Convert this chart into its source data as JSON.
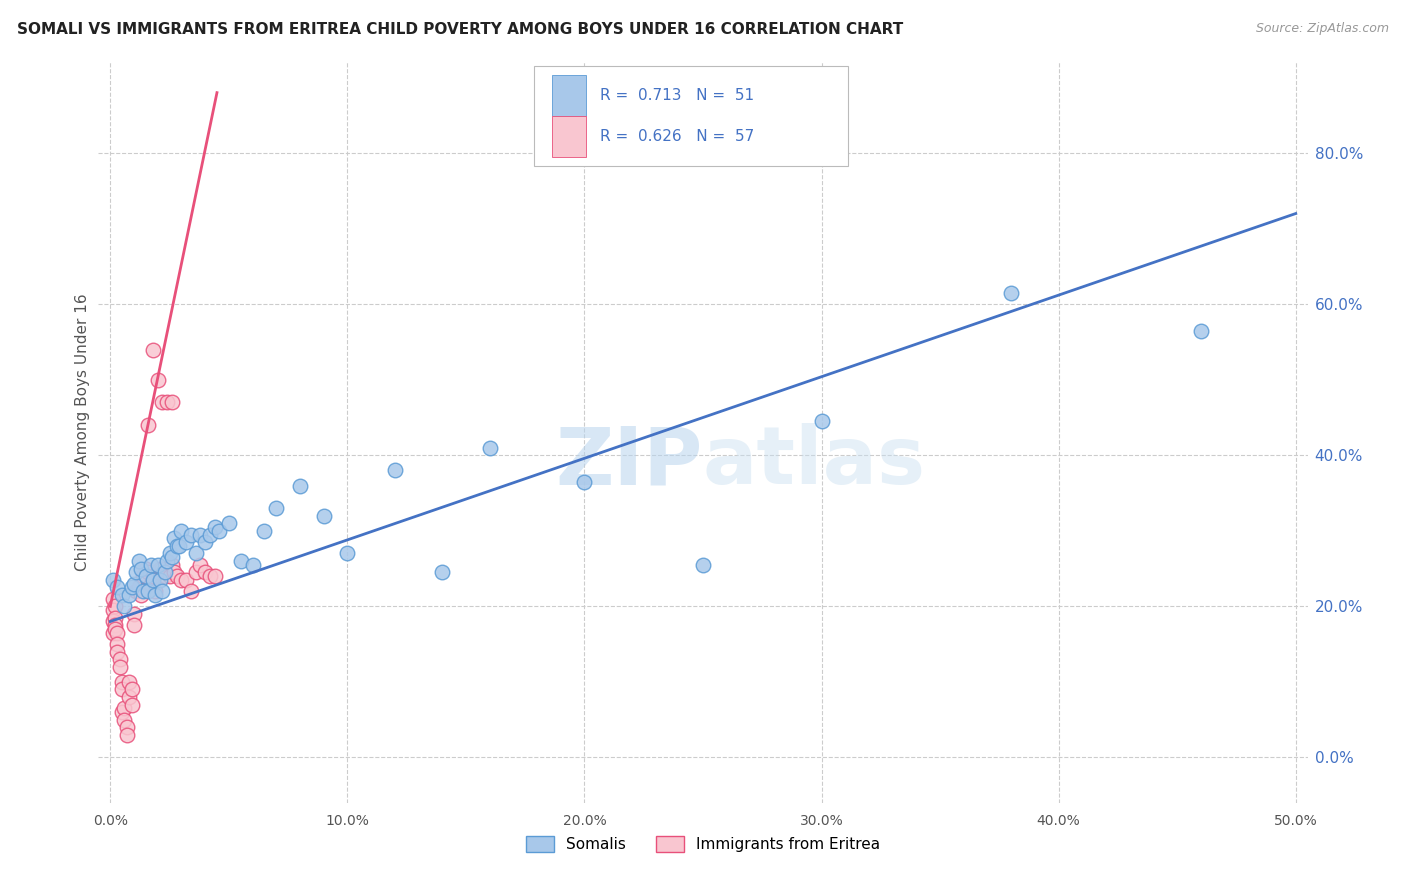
{
  "title": "SOMALI VS IMMIGRANTS FROM ERITREA CHILD POVERTY AMONG BOYS UNDER 16 CORRELATION CHART",
  "source": "Source: ZipAtlas.com",
  "ylabel": "Child Poverty Among Boys Under 16",
  "xlim": [
    -0.005,
    0.505
  ],
  "ylim": [
    -0.06,
    0.92
  ],
  "xtick_positions": [
    0.0,
    0.1,
    0.2,
    0.3,
    0.4,
    0.5
  ],
  "xtick_labels": [
    "0.0%",
    "10.0%",
    "20.0%",
    "30.0%",
    "40.0%",
    "50.0%"
  ],
  "ytick_positions": [
    0.0,
    0.2,
    0.4,
    0.6,
    0.8
  ],
  "ytick_labels": [
    "0.0%",
    "20.0%",
    "40.0%",
    "60.0%",
    "80.0%"
  ],
  "somali_fill": "#a8c8ea",
  "somali_edge": "#5b9bd5",
  "eritrea_fill": "#f9c6d0",
  "eritrea_edge": "#e8507a",
  "somali_line_color": "#4472c4",
  "eritrea_line_color": "#e8507a",
  "legend_text_color": "#4472c4",
  "legend_label_somali": "Somalis",
  "legend_label_eritrea": "Immigrants from Eritrea",
  "R_somali": "0.713",
  "N_somali": "51",
  "R_eritrea": "0.626",
  "N_eritrea": "57",
  "watermark_zip": "ZIP",
  "watermark_atlas": "atlas",
  "somali_line_x0": 0.0,
  "somali_line_x1": 0.5,
  "somali_line_y0": 0.18,
  "somali_line_y1": 0.72,
  "eritrea_line_x0": 0.0,
  "eritrea_line_x1": 0.045,
  "eritrea_line_y0": 0.2,
  "eritrea_line_y1": 0.88,
  "somali_x": [
    0.001,
    0.003,
    0.005,
    0.006,
    0.008,
    0.009,
    0.01,
    0.011,
    0.012,
    0.013,
    0.014,
    0.015,
    0.016,
    0.017,
    0.018,
    0.019,
    0.02,
    0.021,
    0.022,
    0.023,
    0.024,
    0.025,
    0.026,
    0.027,
    0.028,
    0.029,
    0.03,
    0.032,
    0.034,
    0.036,
    0.038,
    0.04,
    0.042,
    0.044,
    0.046,
    0.05,
    0.055,
    0.06,
    0.065,
    0.07,
    0.08,
    0.09,
    0.1,
    0.12,
    0.14,
    0.16,
    0.2,
    0.25,
    0.3,
    0.38,
    0.46
  ],
  "somali_y": [
    0.235,
    0.225,
    0.215,
    0.2,
    0.215,
    0.225,
    0.23,
    0.245,
    0.26,
    0.25,
    0.22,
    0.24,
    0.22,
    0.255,
    0.235,
    0.215,
    0.255,
    0.235,
    0.22,
    0.245,
    0.26,
    0.27,
    0.265,
    0.29,
    0.28,
    0.28,
    0.3,
    0.285,
    0.295,
    0.27,
    0.295,
    0.285,
    0.295,
    0.305,
    0.3,
    0.31,
    0.26,
    0.255,
    0.3,
    0.33,
    0.36,
    0.32,
    0.27,
    0.38,
    0.245,
    0.41,
    0.365,
    0.255,
    0.445,
    0.615,
    0.565
  ],
  "eritrea_x": [
    0.001,
    0.001,
    0.001,
    0.001,
    0.002,
    0.002,
    0.002,
    0.002,
    0.003,
    0.003,
    0.003,
    0.004,
    0.004,
    0.005,
    0.005,
    0.005,
    0.006,
    0.006,
    0.007,
    0.007,
    0.008,
    0.008,
    0.009,
    0.009,
    0.01,
    0.01,
    0.011,
    0.012,
    0.013,
    0.014,
    0.015,
    0.016,
    0.017,
    0.018,
    0.019,
    0.02,
    0.021,
    0.022,
    0.023,
    0.025,
    0.026,
    0.027,
    0.028,
    0.03,
    0.032,
    0.034,
    0.036,
    0.038,
    0.04,
    0.042,
    0.044,
    0.016,
    0.018,
    0.02,
    0.022,
    0.024,
    0.026
  ],
  "eritrea_y": [
    0.21,
    0.195,
    0.18,
    0.165,
    0.2,
    0.185,
    0.175,
    0.17,
    0.165,
    0.15,
    0.14,
    0.13,
    0.12,
    0.1,
    0.09,
    0.06,
    0.065,
    0.05,
    0.04,
    0.03,
    0.1,
    0.08,
    0.09,
    0.07,
    0.19,
    0.175,
    0.22,
    0.225,
    0.215,
    0.24,
    0.25,
    0.245,
    0.23,
    0.24,
    0.22,
    0.245,
    0.25,
    0.25,
    0.24,
    0.24,
    0.255,
    0.245,
    0.24,
    0.235,
    0.235,
    0.22,
    0.245,
    0.255,
    0.245,
    0.24,
    0.24,
    0.44,
    0.54,
    0.5,
    0.47,
    0.47,
    0.47
  ]
}
